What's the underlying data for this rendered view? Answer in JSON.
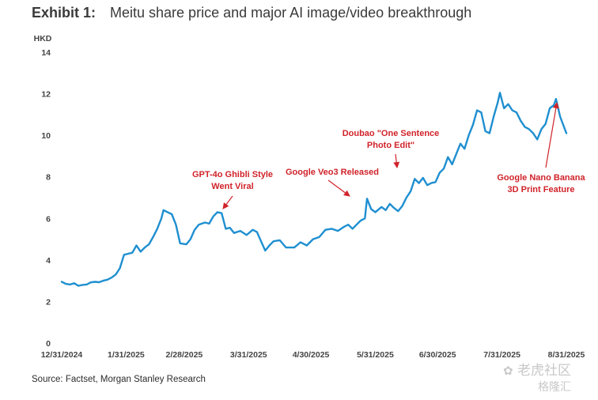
{
  "header": {
    "exhibit_label": "Exhibit 1:",
    "title": "Meitu share price and major AI image/video breakthrough"
  },
  "footer": {
    "source": "Source: Factset, Morgan Stanley Research"
  },
  "watermark": {
    "line1": "老虎社区",
    "line2": "格隆汇"
  },
  "colors": {
    "line": "#1f8fd0",
    "annotation": "#d0232a",
    "axis_text": "#444444"
  },
  "chart_data": {
    "type": "line",
    "title": "Meitu share price and major AI image/video breakthrough",
    "ylabel": "HKD",
    "xlabel": "",
    "ylim": [
      0,
      14
    ],
    "yticks": [
      0,
      2,
      4,
      6,
      8,
      10,
      12,
      14
    ],
    "xlim": [
      "2024-12-31",
      "2025-08-31"
    ],
    "xticks": [
      {
        "date": "2024-12-31",
        "label": "12/31/2024"
      },
      {
        "date": "2025-01-31",
        "label": "1/31/2025"
      },
      {
        "date": "2025-02-28",
        "label": "2/28/2025"
      },
      {
        "date": "2025-03-31",
        "label": "3/31/2025"
      },
      {
        "date": "2025-04-30",
        "label": "4/30/2025"
      },
      {
        "date": "2025-05-31",
        "label": "5/31/2025"
      },
      {
        "date": "2025-06-30",
        "label": "6/30/2025"
      },
      {
        "date": "2025-07-31",
        "label": "7/31/2025"
      },
      {
        "date": "2025-08-31",
        "label": "8/31/2025"
      }
    ],
    "grid": false,
    "legend": "none",
    "series": [
      {
        "points": [
          [
            "2024-12-31",
            2.95
          ],
          [
            "2025-01-02",
            2.85
          ],
          [
            "2025-01-04",
            2.82
          ],
          [
            "2025-01-06",
            2.88
          ],
          [
            "2025-01-08",
            2.76
          ],
          [
            "2025-01-10",
            2.8
          ],
          [
            "2025-01-12",
            2.82
          ],
          [
            "2025-01-14",
            2.92
          ],
          [
            "2025-01-16",
            2.95
          ],
          [
            "2025-01-18",
            2.93
          ],
          [
            "2025-01-20",
            3.0
          ],
          [
            "2025-01-22",
            3.05
          ],
          [
            "2025-01-24",
            3.15
          ],
          [
            "2025-01-26",
            3.3
          ],
          [
            "2025-01-28",
            3.6
          ],
          [
            "2025-01-30",
            4.25
          ],
          [
            "2025-02-01",
            4.3
          ],
          [
            "2025-02-03",
            4.35
          ],
          [
            "2025-02-05",
            4.7
          ],
          [
            "2025-02-07",
            4.4
          ],
          [
            "2025-02-09",
            4.6
          ],
          [
            "2025-02-11",
            4.75
          ],
          [
            "2025-02-13",
            5.1
          ],
          [
            "2025-02-15",
            5.5
          ],
          [
            "2025-02-17",
            6.0
          ],
          [
            "2025-02-18",
            6.4
          ],
          [
            "2025-02-20",
            6.3
          ],
          [
            "2025-02-22",
            6.2
          ],
          [
            "2025-02-24",
            5.7
          ],
          [
            "2025-02-26",
            4.8
          ],
          [
            "2025-03-01",
            4.75
          ],
          [
            "2025-03-03",
            5.0
          ],
          [
            "2025-03-05",
            5.45
          ],
          [
            "2025-03-07",
            5.7
          ],
          [
            "2025-03-10",
            5.8
          ],
          [
            "2025-03-12",
            5.75
          ],
          [
            "2025-03-14",
            6.1
          ],
          [
            "2025-03-16",
            6.3
          ],
          [
            "2025-03-18",
            6.25
          ],
          [
            "2025-03-20",
            5.5
          ],
          [
            "2025-03-22",
            5.55
          ],
          [
            "2025-03-24",
            5.3
          ],
          [
            "2025-03-27",
            5.4
          ],
          [
            "2025-03-30",
            5.2
          ],
          [
            "2025-04-02",
            5.45
          ],
          [
            "2025-04-04",
            5.35
          ],
          [
            "2025-04-06",
            4.9
          ],
          [
            "2025-04-08",
            4.45
          ],
          [
            "2025-04-10",
            4.7
          ],
          [
            "2025-04-12",
            4.9
          ],
          [
            "2025-04-15",
            4.95
          ],
          [
            "2025-04-18",
            4.6
          ],
          [
            "2025-04-22",
            4.6
          ],
          [
            "2025-04-25",
            4.85
          ],
          [
            "2025-04-28",
            4.7
          ],
          [
            "2025-05-01",
            5.0
          ],
          [
            "2025-05-04",
            5.1
          ],
          [
            "2025-05-07",
            5.45
          ],
          [
            "2025-05-10",
            5.5
          ],
          [
            "2025-05-13",
            5.4
          ],
          [
            "2025-05-16",
            5.6
          ],
          [
            "2025-05-18",
            5.7
          ],
          [
            "2025-05-20",
            5.5
          ],
          [
            "2025-05-22",
            5.7
          ],
          [
            "2025-05-24",
            5.9
          ],
          [
            "2025-05-26",
            6.0
          ],
          [
            "2025-05-27",
            6.95
          ],
          [
            "2025-05-29",
            6.45
          ],
          [
            "2025-05-31",
            6.3
          ],
          [
            "2025-06-03",
            6.55
          ],
          [
            "2025-06-05",
            6.4
          ],
          [
            "2025-06-07",
            6.7
          ],
          [
            "2025-06-09",
            6.5
          ],
          [
            "2025-06-11",
            6.35
          ],
          [
            "2025-06-13",
            6.6
          ],
          [
            "2025-06-15",
            7.0
          ],
          [
            "2025-06-17",
            7.3
          ],
          [
            "2025-06-19",
            7.9
          ],
          [
            "2025-06-21",
            7.7
          ],
          [
            "2025-06-23",
            7.95
          ],
          [
            "2025-06-25",
            7.6
          ],
          [
            "2025-06-27",
            7.7
          ],
          [
            "2025-06-29",
            7.75
          ],
          [
            "2025-07-01",
            8.2
          ],
          [
            "2025-07-03",
            8.4
          ],
          [
            "2025-07-05",
            8.95
          ],
          [
            "2025-07-07",
            8.6
          ],
          [
            "2025-07-09",
            9.1
          ],
          [
            "2025-07-11",
            9.6
          ],
          [
            "2025-07-13",
            9.35
          ],
          [
            "2025-07-15",
            10.0
          ],
          [
            "2025-07-17",
            10.5
          ],
          [
            "2025-07-19",
            11.2
          ],
          [
            "2025-07-21",
            11.1
          ],
          [
            "2025-07-23",
            10.2
          ],
          [
            "2025-07-25",
            10.1
          ],
          [
            "2025-07-27",
            10.9
          ],
          [
            "2025-07-29",
            11.6
          ],
          [
            "2025-07-30",
            12.05
          ],
          [
            "2025-08-01",
            11.3
          ],
          [
            "2025-08-03",
            11.5
          ],
          [
            "2025-08-05",
            11.2
          ],
          [
            "2025-08-07",
            11.1
          ],
          [
            "2025-08-09",
            10.7
          ],
          [
            "2025-08-11",
            10.4
          ],
          [
            "2025-08-13",
            10.3
          ],
          [
            "2025-08-15",
            10.1
          ],
          [
            "2025-08-17",
            9.8
          ],
          [
            "2025-08-19",
            10.3
          ],
          [
            "2025-08-21",
            10.55
          ],
          [
            "2025-08-23",
            11.3
          ],
          [
            "2025-08-25",
            11.45
          ],
          [
            "2025-08-26",
            11.75
          ],
          [
            "2025-08-28",
            10.9
          ],
          [
            "2025-08-31",
            10.1
          ]
        ]
      }
    ],
    "annotations": [
      {
        "lines": [
          "GPT-4o Ghibli Style",
          "Went Viral"
        ],
        "target": [
          "2025-03-15",
          6.25
        ]
      },
      {
        "lines": [
          "Google Veo3 Released"
        ],
        "target": [
          "2025-05-27",
          6.95
        ]
      },
      {
        "lines": [
          "Doubao \"One Sentence",
          "Photo Edit\""
        ],
        "target": [
          "2025-06-19",
          7.9
        ]
      },
      {
        "lines": [
          "Google Nano Banana",
          "3D Print Feature"
        ],
        "target": [
          "2025-08-26",
          11.4
        ]
      }
    ]
  }
}
